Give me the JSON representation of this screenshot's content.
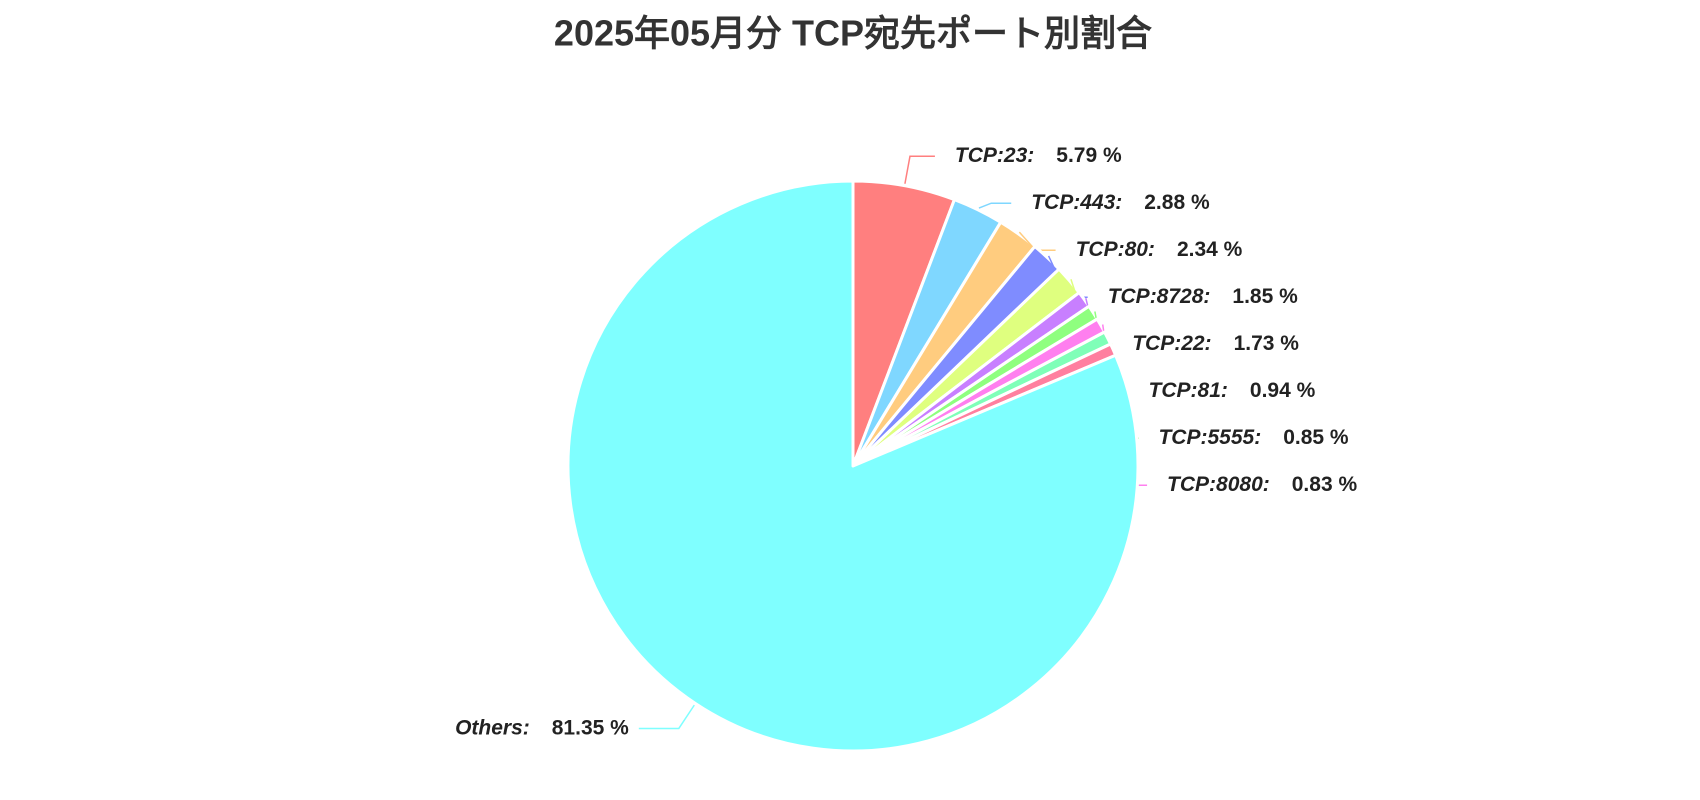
{
  "chart_data": {
    "type": "pie",
    "title": "2025年05月分 TCP宛先ポート別割合",
    "categories": [
      "TCP:23:",
      "TCP:443:",
      "TCP:80:",
      "TCP:8728:",
      "TCP:22:",
      "TCP:81:",
      "TCP:5555:",
      "TCP:8080:",
      null,
      null,
      "Others:"
    ],
    "values": [
      5.79,
      2.88,
      2.34,
      1.85,
      1.73,
      0.94,
      0.85,
      0.83,
      0.75,
      0.69,
      81.35
    ],
    "value_labels": [
      "5.79 %",
      "2.88 %",
      "2.34 %",
      "1.85 %",
      "1.73 %",
      "0.94 %",
      "0.85 %",
      "0.83 %",
      null,
      null,
      "81.35 %"
    ],
    "colors": [
      "#ff7f7f",
      "#7fd7ff",
      "#ffcc7f",
      "#7f8cff",
      "#dfff7f",
      "#c87fff",
      "#8fff7f",
      "#ff7fef",
      "#7fffb8",
      "#ff7f9f",
      "#7fffff"
    ]
  }
}
